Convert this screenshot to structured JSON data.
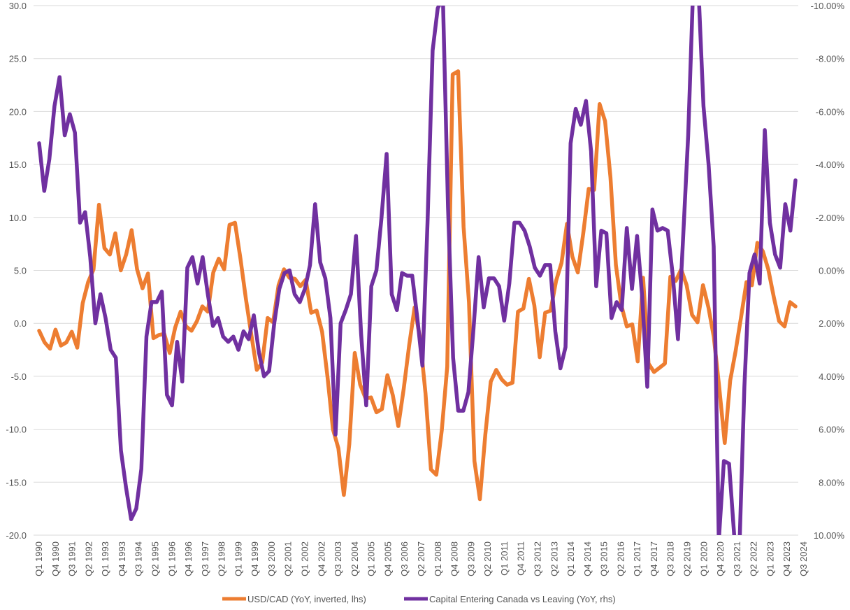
{
  "chart_data": {
    "type": "line",
    "title": "",
    "xlabel": "",
    "ylabel_left": "",
    "ylabel_right": "",
    "grid": true,
    "legend_position": "bottom",
    "left_axis": {
      "range": [
        -20,
        30
      ],
      "ticks": [
        30,
        25,
        20,
        15,
        10,
        5,
        0,
        -5,
        -10,
        -15,
        -20
      ],
      "tick_labels": [
        "30.0",
        "25.0",
        "20.0",
        "15.0",
        "10.0",
        "5.0",
        "0.0",
        "-5.0",
        "-10.0",
        "-15.0",
        "-20.0"
      ]
    },
    "right_axis": {
      "range_top_to_bottom": [
        -10,
        10
      ],
      "inverted": true,
      "ticks": [
        -10,
        -8,
        -6,
        -4,
        -2,
        0,
        2,
        4,
        6,
        8,
        10
      ],
      "tick_labels": [
        "-10.00%",
        "-8.00%",
        "-6.00%",
        "-4.00%",
        "-2.00%",
        "0.00%",
        "2.00%",
        "4.00%",
        "6.00%",
        "8.00%",
        "10.00%"
      ]
    },
    "x_tick_labels": [
      "Q1 1990",
      "Q4 1990",
      "Q3 1991",
      "Q2 1992",
      "Q1 1993",
      "Q4 1993",
      "Q3 1994",
      "Q2 1995",
      "Q1 1996",
      "Q4 1996",
      "Q3 1997",
      "Q2 1998",
      "Q1 1999",
      "Q4 1999",
      "Q3 2000",
      "Q2 2001",
      "Q1 2002",
      "Q4 2002",
      "Q3 2003",
      "Q2 2004",
      "Q1 2005",
      "Q4 2005",
      "Q3 2006",
      "Q2 2007",
      "Q1 2008",
      "Q4 2008",
      "Q3 2009",
      "Q2 2010",
      "Q1 2011",
      "Q4 2011",
      "Q3 2012",
      "Q2 2013",
      "Q1 2014",
      "Q4 2014",
      "Q3 2015",
      "Q2 2016",
      "Q1 2017",
      "Q4 2017",
      "Q3 2018",
      "Q2 2019",
      "Q1 2020",
      "Q4 2020",
      "Q3 2021",
      "Q2 2022",
      "Q1 2023",
      "Q4 2023",
      "Q3 2024"
    ],
    "series": [
      {
        "name": "USD/CAD (YoY, inverted, lhs)",
        "axis": "left",
        "color": "#ED7D31",
        "values": [
          -0.7,
          -1.8,
          -2.4,
          -0.6,
          -2.1,
          -1.8,
          -0.8,
          -2.3,
          1.9,
          3.9,
          5.1,
          11.2,
          7.1,
          6.5,
          8.5,
          5.0,
          6.5,
          8.8,
          5.1,
          3.3,
          4.7,
          -1.4,
          -1.1,
          -1.0,
          -2.8,
          -0.4,
          1.1,
          -0.3,
          -0.7,
          0.2,
          1.6,
          1.1,
          4.8,
          6.1,
          5.1,
          9.3,
          9.5,
          6.1,
          2.3,
          -1.1,
          -4.4,
          -3.7,
          0.5,
          0.1,
          3.6,
          5.1,
          4.3,
          4.2,
          3.5,
          4.1,
          1.0,
          1.2,
          -0.8,
          -5.1,
          -10.0,
          -11.8,
          -16.2,
          -11.4,
          -2.8,
          -5.8,
          -7.1,
          -7.0,
          -8.4,
          -8.1,
          -4.9,
          -6.8,
          -9.7,
          -6.2,
          -2.1,
          1.5,
          -1.4,
          -6.6,
          -13.8,
          -14.3,
          -10.1,
          -4.1,
          23.5,
          23.8,
          9.1,
          2.0,
          -13.0,
          -16.6,
          -10.5,
          -5.5,
          -4.4,
          -5.3,
          -5.8,
          -5.6,
          1.1,
          1.4,
          4.2,
          1.7,
          -3.2,
          1.0,
          1.2,
          4.0,
          5.7,
          9.4,
          6.3,
          4.8,
          8.5,
          12.7,
          12.6,
          20.7,
          19.1,
          13.8,
          5.5,
          1.7,
          -0.3,
          -0.1,
          -3.6,
          4.3,
          -3.8,
          -4.6,
          -4.2,
          -3.8,
          4.4,
          4.0,
          5.1,
          3.6,
          0.8,
          0.1,
          3.6,
          1.5,
          -1.3,
          -6.1,
          -11.3,
          -5.4,
          -2.6,
          0.6,
          3.9,
          3.6,
          7.6,
          6.8,
          5.1,
          2.5,
          0.2,
          -0.3,
          2.0,
          1.6
        ]
      },
      {
        "name": "Capital Entering Canada vs Leaving (YoY, rhs)",
        "axis": "right",
        "color": "#7030A0",
        "values": [
          -4.8,
          -3.0,
          -4.2,
          -6.2,
          -7.3,
          -5.1,
          -5.9,
          -5.2,
          -1.8,
          -2.2,
          -0.5,
          2.0,
          0.9,
          1.8,
          3.0,
          3.3,
          6.8,
          8.2,
          9.4,
          9.0,
          7.5,
          2.5,
          1.2,
          1.2,
          0.8,
          4.7,
          5.1,
          2.7,
          4.2,
          -0.1,
          -0.5,
          0.5,
          -0.5,
          0.9,
          2.1,
          1.8,
          2.5,
          2.7,
          2.5,
          3.0,
          2.3,
          2.6,
          1.7,
          3.1,
          4.0,
          3.8,
          2.0,
          0.7,
          0.1,
          0.0,
          0.9,
          1.2,
          0.7,
          -0.2,
          -2.5,
          -0.3,
          0.3,
          1.8,
          6.2,
          2.0,
          1.5,
          0.9,
          -1.3,
          2.4,
          5.1,
          0.6,
          0.0,
          -2.0,
          -4.4,
          0.9,
          1.5,
          0.1,
          0.2,
          0.2,
          1.8,
          3.6,
          -1.8,
          -8.3,
          -9.9,
          -10.3,
          -2.4,
          3.3,
          5.3,
          5.3,
          4.6,
          2.2,
          -0.5,
          1.4,
          0.3,
          0.3,
          0.6,
          1.9,
          0.5,
          -1.8,
          -1.8,
          -1.5,
          -0.9,
          -0.1,
          0.2,
          -0.2,
          -0.2,
          2.3,
          3.7,
          2.9,
          -4.8,
          -6.1,
          -5.5,
          -6.4,
          -4.5,
          0.6,
          -1.5,
          -1.4,
          1.8,
          1.2,
          1.5,
          -1.6,
          0.7,
          -1.3,
          1.0,
          4.4,
          -2.3,
          -1.5,
          -1.6,
          -1.5,
          0.2,
          2.6,
          -1.2,
          -5.1,
          -10.8,
          -10.7,
          -6.2,
          -4.0,
          -0.9,
          10.2,
          7.2,
          7.3,
          10.0,
          10.7,
          4.4,
          0.1,
          -0.6,
          0.5,
          -5.3,
          -1.8,
          -0.6,
          -0.1,
          -2.5,
          -1.5,
          -3.4
        ]
      }
    ]
  }
}
